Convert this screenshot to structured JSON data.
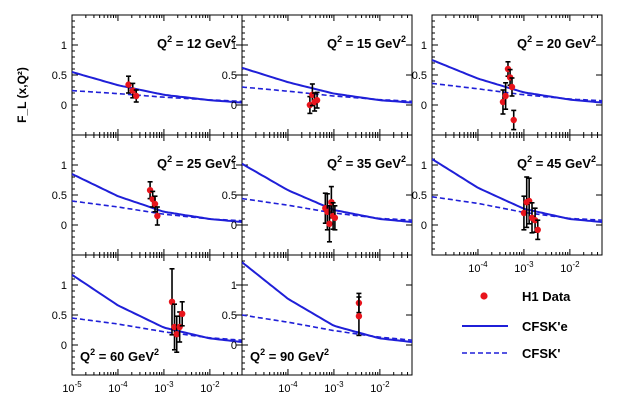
{
  "chart_data": {
    "type": "scatter",
    "ylabel": "F_L (x,Q²)",
    "xscale": "log",
    "xlim": [
      1e-05,
      0.05
    ],
    "ylim": [
      -0.5,
      1.5
    ],
    "yticks": [
      "0",
      "0.5",
      "1"
    ],
    "xticks": [
      {
        "exp": "-5",
        "v": 1e-05
      },
      {
        "exp": "-4",
        "v": 0.0001
      },
      {
        "exp": "-3",
        "v": 0.001
      },
      {
        "exp": "-2",
        "v": 0.01
      }
    ],
    "legend": {
      "placement": "bottom-right",
      "entries": [
        {
          "name": "H1 Data",
          "style": "marker"
        },
        {
          "name": "CFSK'e",
          "style": "solid"
        },
        {
          "name": "CFSK'",
          "style": "dashed"
        }
      ]
    },
    "colors": {
      "data": "#e8141c",
      "model": "#1f1fd8"
    },
    "panels": [
      {
        "q2": "12",
        "label_pos": "top-right",
        "cfske": [
          [
            1e-05,
            0.55
          ],
          [
            0.0001,
            0.33
          ],
          [
            0.001,
            0.17
          ],
          [
            0.01,
            0.08
          ],
          [
            0.05,
            0.04
          ]
        ],
        "cfsk": [
          [
            1e-05,
            0.24
          ],
          [
            0.0001,
            0.19
          ],
          [
            0.001,
            0.13
          ],
          [
            0.01,
            0.085
          ],
          [
            0.05,
            0.06
          ]
        ],
        "points": [
          [
            0.00017,
            0.34,
            0.14
          ],
          [
            0.00021,
            0.24,
            0.12
          ],
          [
            0.00025,
            0.15,
            0.1
          ]
        ]
      },
      {
        "q2": "15",
        "label_pos": "top-right",
        "cfske": [
          [
            1e-05,
            0.62
          ],
          [
            0.0001,
            0.38
          ],
          [
            0.001,
            0.19
          ],
          [
            0.01,
            0.08
          ],
          [
            0.05,
            0.04
          ]
        ],
        "cfsk": [
          [
            1e-05,
            0.3
          ],
          [
            0.0001,
            0.23
          ],
          [
            0.001,
            0.15
          ],
          [
            0.01,
            0.09
          ],
          [
            0.05,
            0.06
          ]
        ],
        "points": [
          [
            0.0003,
            0.0,
            0.14
          ],
          [
            0.00034,
            0.17,
            0.18
          ],
          [
            0.00038,
            0.05,
            0.15
          ],
          [
            0.00043,
            0.08,
            0.13
          ]
        ]
      },
      {
        "q2": "20",
        "label_pos": "top-right",
        "cfske": [
          [
            1e-05,
            0.75
          ],
          [
            0.0001,
            0.44
          ],
          [
            0.001,
            0.21
          ],
          [
            0.01,
            0.09
          ],
          [
            0.05,
            0.04
          ]
        ],
        "cfsk": [
          [
            1e-05,
            0.36
          ],
          [
            0.0001,
            0.27
          ],
          [
            0.001,
            0.17
          ],
          [
            0.01,
            0.1
          ],
          [
            0.05,
            0.07
          ]
        ],
        "points": [
          [
            0.00035,
            0.05,
            0.2
          ],
          [
            0.0004,
            0.15,
            0.22
          ],
          [
            0.00045,
            0.6,
            0.12
          ],
          [
            0.0005,
            0.46,
            0.13
          ],
          [
            0.00055,
            0.3,
            0.15
          ],
          [
            0.0006,
            -0.25,
            0.16
          ]
        ]
      },
      {
        "q2": "25",
        "label_pos": "top-right",
        "cfske": [
          [
            1e-05,
            0.85
          ],
          [
            0.0001,
            0.48
          ],
          [
            0.001,
            0.22
          ],
          [
            0.01,
            0.1
          ],
          [
            0.05,
            0.05
          ]
        ],
        "cfsk": [
          [
            1e-05,
            0.4
          ],
          [
            0.0001,
            0.3
          ],
          [
            0.001,
            0.18
          ],
          [
            0.01,
            0.1
          ],
          [
            0.05,
            0.07
          ]
        ],
        "points": [
          [
            0.0005,
            0.58,
            0.14
          ],
          [
            0.00057,
            0.43,
            0.13
          ],
          [
            0.00064,
            0.35,
            0.13
          ],
          [
            0.00072,
            0.15,
            0.15
          ]
        ]
      },
      {
        "q2": "35",
        "label_pos": "top-right",
        "cfske": [
          [
            1e-05,
            1.02
          ],
          [
            0.0001,
            0.58
          ],
          [
            0.001,
            0.25
          ],
          [
            0.01,
            0.1
          ],
          [
            0.05,
            0.05
          ]
        ],
        "cfsk": [
          [
            1e-05,
            0.44
          ],
          [
            0.0001,
            0.33
          ],
          [
            0.001,
            0.2
          ],
          [
            0.01,
            0.11
          ],
          [
            0.05,
            0.08
          ]
        ],
        "points": [
          [
            0.00065,
            0.28,
            0.25
          ],
          [
            0.00072,
            0.22,
            0.3
          ],
          [
            0.0008,
            0.02,
            0.3
          ],
          [
            0.00088,
            0.38,
            0.26
          ],
          [
            0.00096,
            0.15,
            0.22
          ],
          [
            0.00105,
            0.12,
            0.2
          ]
        ]
      },
      {
        "q2": "45",
        "label_pos": "top-right",
        "cfske": [
          [
            1e-05,
            1.1
          ],
          [
            0.0001,
            0.62
          ],
          [
            0.001,
            0.27
          ],
          [
            0.01,
            0.1
          ],
          [
            0.05,
            0.05
          ]
        ],
        "cfsk": [
          [
            1e-05,
            0.47
          ],
          [
            0.0001,
            0.36
          ],
          [
            0.001,
            0.21
          ],
          [
            0.01,
            0.11
          ],
          [
            0.05,
            0.08
          ]
        ],
        "points": [
          [
            0.001,
            0.2,
            0.28
          ],
          [
            0.00115,
            0.38,
            0.42
          ],
          [
            0.0013,
            0.4,
            0.38
          ],
          [
            0.0015,
            0.12,
            0.25
          ],
          [
            0.00175,
            0.08,
            0.2
          ],
          [
            0.002,
            -0.08,
            0.16
          ]
        ]
      },
      {
        "q2": "60",
        "label_pos": "bottom-left",
        "cfske": [
          [
            1e-05,
            1.17
          ],
          [
            0.0001,
            0.66
          ],
          [
            0.001,
            0.29
          ],
          [
            0.01,
            0.11
          ],
          [
            0.05,
            0.05
          ]
        ],
        "cfsk": [
          [
            1e-05,
            0.45
          ],
          [
            0.0001,
            0.35
          ],
          [
            0.001,
            0.22
          ],
          [
            0.01,
            0.12
          ],
          [
            0.05,
            0.08
          ]
        ],
        "points": [
          [
            0.0015,
            0.72,
            0.55
          ],
          [
            0.0017,
            0.3,
            0.38
          ],
          [
            0.0019,
            0.18,
            0.3
          ],
          [
            0.0022,
            0.3,
            0.25
          ],
          [
            0.0025,
            0.52,
            0.2
          ]
        ]
      },
      {
        "q2": "90",
        "label_pos": "bottom-left",
        "cfske": [
          [
            1e-05,
            1.38
          ],
          [
            0.0001,
            0.77
          ],
          [
            0.001,
            0.32
          ],
          [
            0.01,
            0.11
          ],
          [
            0.05,
            0.05
          ]
        ],
        "cfsk": [
          [
            1e-05,
            0.5
          ],
          [
            0.0001,
            0.38
          ],
          [
            0.001,
            0.24
          ],
          [
            0.01,
            0.13
          ],
          [
            0.05,
            0.08
          ]
        ],
        "points": [
          [
            0.0035,
            0.7,
            0.16
          ],
          [
            0.0035,
            0.48,
            0.32
          ]
        ]
      }
    ]
  }
}
